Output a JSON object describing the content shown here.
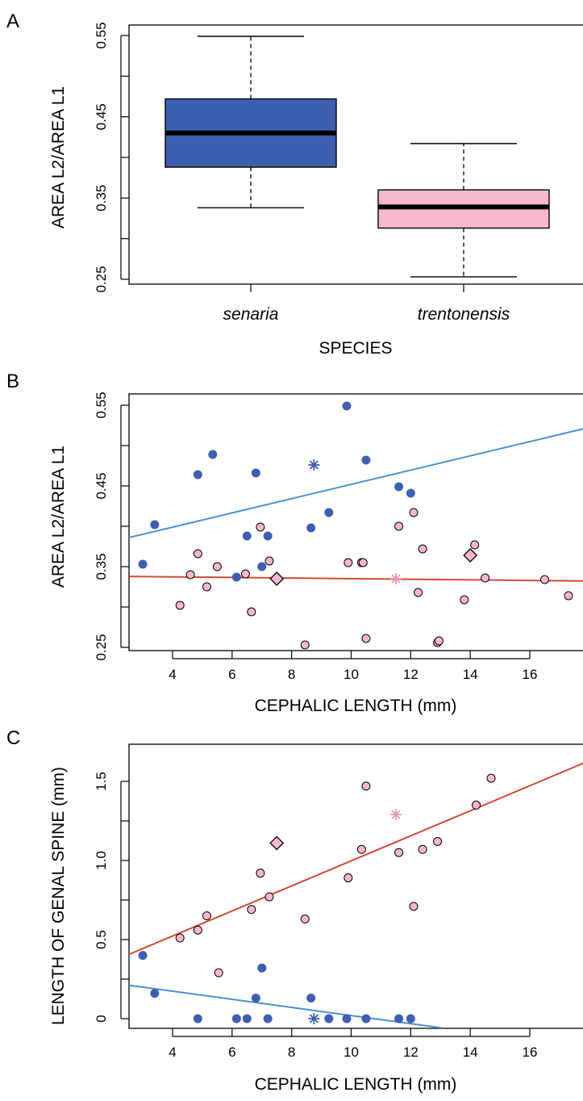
{
  "colors": {
    "senaria": "#3e5fb0",
    "trentonensis": "#f7b8cf",
    "trentonensis_star": "#e89ab6",
    "fit_blue": "#4a90d0",
    "fit_red": "#d04a36",
    "outline": "#000000"
  },
  "chart_data": [
    {
      "panel": "A",
      "type": "boxplot",
      "xlabel": "SPECIES",
      "ylabel": "AREA L2/AREA L1",
      "ylim": [
        0.25,
        0.55
      ],
      "yticks": [
        "0.25",
        "0.35",
        "0.45",
        "0.55"
      ],
      "categories": [
        "senaria",
        "trentonensis"
      ],
      "boxes": [
        {
          "category": "senaria",
          "min": 0.338,
          "q1": 0.388,
          "median": 0.43,
          "q3": 0.472,
          "max": 0.549,
          "color": "#3e5fb0"
        },
        {
          "category": "trentonensis",
          "min": 0.253,
          "q1": 0.313,
          "median": 0.339,
          "q3": 0.36,
          "max": 0.417,
          "color": "#f7b8cf"
        }
      ]
    },
    {
      "panel": "B",
      "type": "scatter",
      "xlabel": "CEPHALIC LENGTH (mm)",
      "ylabel": "AREA L2/AREA L1",
      "xlim": [
        3,
        18
      ],
      "ylim": [
        0.25,
        0.55
      ],
      "xticks": [
        "4",
        "6",
        "8",
        "10",
        "12",
        "14",
        "16"
      ],
      "yticks": [
        "0.25",
        "0.35",
        "0.45",
        "0.55"
      ],
      "series": [
        {
          "color": "#3e5fb0",
          "marker": "filled-circle",
          "points": [
            [
              3.0,
              0.353
            ],
            [
              3.4,
              0.402
            ],
            [
              4.85,
              0.464
            ],
            [
              5.35,
              0.489
            ],
            [
              6.15,
              0.337
            ],
            [
              6.5,
              0.388
            ],
            [
              6.8,
              0.466
            ],
            [
              7.0,
              0.35
            ],
            [
              7.2,
              0.388
            ],
            [
              8.65,
              0.398
            ],
            [
              9.25,
              0.417
            ],
            [
              9.85,
              0.549
            ],
            [
              10.5,
              0.482
            ],
            [
              11.6,
              0.449
            ],
            [
              12.0,
              0.441
            ]
          ],
          "star": [
            8.75,
            0.476
          ],
          "fit": [
            [
              2.2,
              0.383
            ],
            [
              18.5,
              0.527
            ]
          ],
          "fit_color": "#4a90d0"
        },
        {
          "color": "#f7b8cf",
          "marker": "open-circle",
          "points": [
            [
              4.25,
              0.302
            ],
            [
              4.6,
              0.34
            ],
            [
              4.85,
              0.366
            ],
            [
              5.15,
              0.325
            ],
            [
              5.5,
              0.35
            ],
            [
              6.45,
              0.341
            ],
            [
              6.65,
              0.294
            ],
            [
              6.95,
              0.399
            ],
            [
              7.25,
              0.357
            ],
            [
              8.45,
              0.253
            ],
            [
              9.9,
              0.355
            ],
            [
              10.35,
              0.355
            ],
            [
              10.4,
              0.355
            ],
            [
              10.5,
              0.261
            ],
            [
              11.6,
              0.4
            ],
            [
              12.1,
              0.417
            ],
            [
              12.25,
              0.318
            ],
            [
              12.4,
              0.372
            ],
            [
              12.9,
              0.256
            ],
            [
              12.95,
              0.258
            ],
            [
              13.8,
              0.309
            ],
            [
              14.15,
              0.377
            ],
            [
              14.5,
              0.336
            ],
            [
              16.5,
              0.334
            ],
            [
              17.3,
              0.314
            ]
          ],
          "diamonds": [
            [
              7.5,
              0.335
            ],
            [
              14.0,
              0.364
            ]
          ],
          "star": [
            11.5,
            0.335
          ],
          "star_color": "#e89ab6",
          "fit": [
            [
              2.2,
              0.338
            ],
            [
              18.5,
              0.332
            ]
          ],
          "fit_color": "#d04a36"
        }
      ]
    },
    {
      "panel": "C",
      "type": "scatter",
      "xlabel": "CEPHALIC LENGTH (mm)",
      "ylabel": "LENGTH OF GENAL SPINE (mm)",
      "xlim": [
        3,
        18
      ],
      "ylim": [
        0,
        1.5
      ],
      "xticks": [
        "4",
        "6",
        "8",
        "10",
        "12",
        "14",
        "16"
      ],
      "yticks": [
        "0",
        "0.5",
        "1.0",
        "1.5"
      ],
      "series": [
        {
          "color": "#3e5fb0",
          "marker": "filled-circle",
          "points": [
            [
              3.0,
              0.4
            ],
            [
              3.4,
              0.16
            ],
            [
              4.85,
              0.0
            ],
            [
              6.15,
              0.0
            ],
            [
              6.5,
              0.0
            ],
            [
              6.8,
              0.13
            ],
            [
              7.0,
              0.32
            ],
            [
              7.2,
              0.0
            ],
            [
              8.65,
              0.13
            ],
            [
              9.25,
              0.0
            ],
            [
              9.85,
              0.0
            ],
            [
              10.5,
              0.0
            ],
            [
              11.6,
              0.0
            ],
            [
              12.0,
              0.0
            ]
          ],
          "star": [
            8.75,
            0.0
          ],
          "fit": [
            [
              2.2,
              0.22
            ],
            [
              13.1,
              -0.06
            ]
          ],
          "fit_color": "#4a90d0"
        },
        {
          "color": "#f7b8cf",
          "marker": "open-circle",
          "points": [
            [
              4.25,
              0.51
            ],
            [
              4.85,
              0.56
            ],
            [
              5.15,
              0.65
            ],
            [
              5.55,
              0.29
            ],
            [
              6.65,
              0.69
            ],
            [
              6.95,
              0.92
            ],
            [
              7.25,
              0.77
            ],
            [
              8.45,
              0.63
            ],
            [
              9.9,
              0.89
            ],
            [
              10.35,
              1.07
            ],
            [
              10.5,
              1.47
            ],
            [
              11.6,
              1.05
            ],
            [
              12.1,
              0.71
            ],
            [
              12.4,
              1.07
            ],
            [
              12.9,
              1.12
            ],
            [
              14.2,
              1.35
            ],
            [
              14.7,
              1.52
            ]
          ],
          "diamonds": [
            [
              7.5,
              1.11
            ]
          ],
          "star": [
            11.5,
            1.29
          ],
          "star_color": "#e89ab6",
          "fit": [
            [
              2.2,
              0.38
            ],
            [
              18.5,
              1.67
            ]
          ],
          "fit_color": "#d04a36"
        }
      ]
    }
  ]
}
